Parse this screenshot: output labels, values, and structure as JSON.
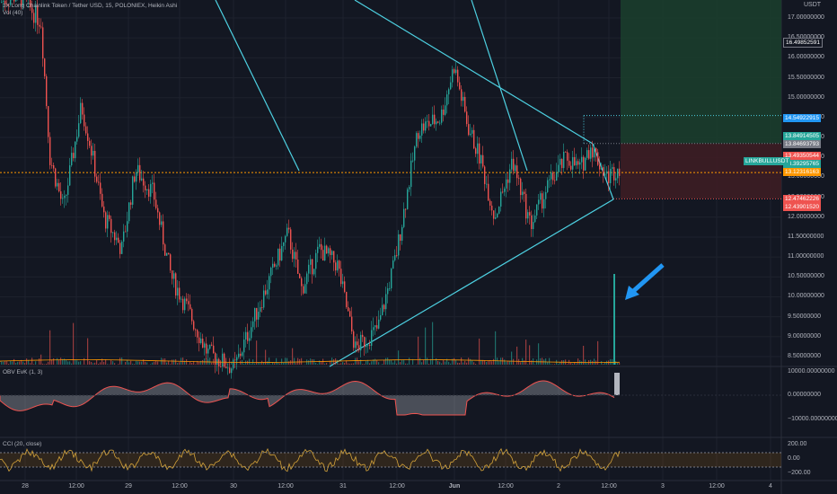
{
  "header": {
    "title": "3X Long Chainlink Token / Tether USD, 15, POLONIEX, Heikin Ashi",
    "vol_label": "Vol (40)"
  },
  "price_axis": {
    "currency": "USDT",
    "ticks": [
      "17.00000000",
      "16.50000000",
      "16.00000000",
      "15.50000000",
      "15.00000000",
      "14.50000000",
      "14.00000000",
      "13.50000000",
      "13.00000000",
      "12.50000000",
      "12.00000000",
      "11.50000000",
      "11.00000000",
      "10.50000000",
      "10.00000000",
      "9.50000000",
      "9.00000000",
      "8.50000000"
    ],
    "tags": [
      {
        "text": "16.49852591",
        "bg": "#131722",
        "fg": "#ffffff",
        "border": "#787b86"
      },
      {
        "text": "14.54922915",
        "bg": "#2196f3",
        "fg": "#ffffff"
      },
      {
        "text": "13.84914505",
        "bg": "#26a69a",
        "fg": "#ffffff"
      },
      {
        "text": "13.84693793",
        "bg": "#787b86",
        "fg": "#ffffff"
      },
      {
        "text": "13.49350544",
        "bg": "#ef5350",
        "fg": "#ffffff"
      },
      {
        "text": "13.39295765",
        "bg": "#26a69a",
        "fg": "#ffffff"
      },
      {
        "text": "13.12316163",
        "bg": "#ff9800",
        "fg": "#ffffff"
      },
      {
        "text": "12.47462226",
        "bg": "#ef5350",
        "fg": "#ffffff"
      },
      {
        "text": "12.43901520",
        "bg": "#ef5350",
        "fg": "#ffffff"
      }
    ],
    "symbol_tag": "LINKBULLUSDT"
  },
  "obv": {
    "label": "OBV EvK (1, 3)",
    "ticks": [
      "10000.00000000",
      "0.00000000",
      "−10000.00000000"
    ]
  },
  "cci": {
    "label": "CCI (20, close)",
    "ticks": [
      "200.00",
      "0.00",
      "−200.00"
    ]
  },
  "time_axis": {
    "ticks": [
      "28",
      "12:00",
      "29",
      "12:00",
      "30",
      "12:00",
      "31",
      "12:00",
      "Jun",
      "12:00",
      "2",
      "12:00",
      "3",
      "12:00",
      "4"
    ]
  },
  "colors": {
    "background": "#131722",
    "up": "#26a69a",
    "down": "#ef5350",
    "trendline": "#4dd0e1",
    "target_zone": "#1b3d2c",
    "stop_zone": "#3d1d24",
    "current_price": "#ff9800",
    "arrow": "#2196f3"
  }
}
